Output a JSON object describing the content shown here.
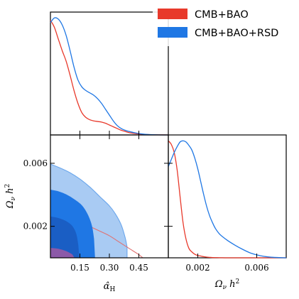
{
  "chart_data": [
    {
      "type": "line",
      "panel": "hat-alpha-H-1d-marginal",
      "xlim": [
        0,
        0.6
      ],
      "ylim": [
        0,
        1.05
      ],
      "series": [
        {
          "name": "CMB+BAO",
          "color": "#e8392b",
          "x": [
            0,
            0.02,
            0.04,
            0.06,
            0.08,
            0.1,
            0.12,
            0.14,
            0.16,
            0.18,
            0.2,
            0.22,
            0.24,
            0.26,
            0.28,
            0.3,
            0.32,
            0.34,
            0.36,
            0.38,
            0.4,
            0.43,
            0.46,
            0.5,
            0.55,
            0.6
          ],
          "y": [
            0.98,
            0.92,
            0.82,
            0.72,
            0.63,
            0.51,
            0.38,
            0.27,
            0.19,
            0.15,
            0.13,
            0.12,
            0.115,
            0.11,
            0.1,
            0.085,
            0.07,
            0.055,
            0.04,
            0.03,
            0.02,
            0.012,
            0.007,
            0.003,
            0.001,
            0.0
          ]
        },
        {
          "name": "CMB+BAO+RSD",
          "color": "#1f77e4",
          "x": [
            0,
            0.02,
            0.04,
            0.06,
            0.08,
            0.1,
            0.12,
            0.14,
            0.16,
            0.18,
            0.2,
            0.22,
            0.24,
            0.26,
            0.28,
            0.3,
            0.32,
            0.34,
            0.36,
            0.38,
            0.4,
            0.43,
            0.46,
            0.5,
            0.55,
            0.6
          ],
          "y": [
            0.96,
            1.0,
            0.99,
            0.94,
            0.85,
            0.72,
            0.58,
            0.47,
            0.41,
            0.38,
            0.36,
            0.34,
            0.31,
            0.27,
            0.22,
            0.17,
            0.12,
            0.08,
            0.055,
            0.04,
            0.03,
            0.018,
            0.01,
            0.004,
            0.001,
            0.0
          ]
        }
      ]
    },
    {
      "type": "line",
      "panel": "omega-nu-h2-1d-marginal",
      "xlim": [
        0,
        0.008
      ],
      "ylim": [
        0,
        1.05
      ],
      "series": [
        {
          "name": "CMB+BAO",
          "color": "#e8392b",
          "x": [
            0,
            0.0002,
            0.0004,
            0.0006,
            0.0008,
            0.001,
            0.0012,
            0.0014,
            0.0016,
            0.0018,
            0.002,
            0.0022,
            0.0024,
            0.0026,
            0.0028,
            0.003,
            0.0035,
            0.004,
            0.005,
            0.006,
            0.007,
            0.008
          ],
          "y": [
            1.0,
            0.97,
            0.9,
            0.75,
            0.52,
            0.3,
            0.16,
            0.08,
            0.05,
            0.03,
            0.02,
            0.015,
            0.01,
            0.006,
            0.004,
            0.002,
            0.001,
            0.0,
            0.0,
            0.0,
            0.0,
            0.0
          ]
        },
        {
          "name": "CMB+BAO+RSD",
          "color": "#1f77e4",
          "x": [
            0,
            0.0002,
            0.0004,
            0.0006,
            0.0008,
            0.001,
            0.0012,
            0.0014,
            0.0016,
            0.0018,
            0.002,
            0.0022,
            0.0024,
            0.0026,
            0.0028,
            0.003,
            0.0032,
            0.0035,
            0.004,
            0.0045,
            0.005,
            0.0055,
            0.006,
            0.0065,
            0.007,
            0.008
          ],
          "y": [
            0.78,
            0.84,
            0.9,
            0.95,
            0.99,
            1.0,
            0.99,
            0.96,
            0.92,
            0.85,
            0.76,
            0.65,
            0.54,
            0.44,
            0.36,
            0.3,
            0.25,
            0.2,
            0.15,
            0.11,
            0.075,
            0.045,
            0.025,
            0.012,
            0.005,
            0.0
          ]
        }
      ]
    },
    {
      "type": "area",
      "panel": "2d-contours",
      "xlabel": "α̂_H",
      "ylabel": "Ω_ν h²",
      "xlim": [
        0,
        0.6
      ],
      "ylim": [
        0,
        0.0078
      ],
      "xticks": [
        "0.15",
        "0.30",
        "0.45"
      ],
      "yticks": [
        "0.002",
        "0.006"
      ],
      "contours": [
        {
          "name": "CMB+BAO+RSD",
          "level": "95%",
          "fill": "#a9cbf3",
          "edge": "#6aa6ec",
          "points": [
            [
              0,
              0.00595
            ],
            [
              0.05,
              0.0057
            ],
            [
              0.1,
              0.0054
            ],
            [
              0.15,
              0.005
            ],
            [
              0.2,
              0.0045
            ],
            [
              0.25,
              0.0039
            ],
            [
              0.3,
              0.0033
            ],
            [
              0.33,
              0.0028
            ],
            [
              0.36,
              0.0021
            ],
            [
              0.38,
              0.0013
            ],
            [
              0.39,
              0.0007
            ],
            [
              0.39,
              0.0
            ],
            [
              0,
              0.0
            ]
          ]
        },
        {
          "name": "CMB+BAO",
          "level": "95%",
          "fill": "none",
          "edge": "#e07070",
          "points": [
            [
              0,
              0.0027
            ],
            [
              0.05,
              0.0026
            ],
            [
              0.1,
              0.0025
            ],
            [
              0.15,
              0.0023
            ],
            [
              0.2,
              0.002
            ],
            [
              0.25,
              0.0017
            ],
            [
              0.3,
              0.0014
            ],
            [
              0.35,
              0.001
            ],
            [
              0.4,
              0.0006
            ],
            [
              0.45,
              0.0002
            ],
            [
              0.47,
              0.0
            ]
          ]
        },
        {
          "name": "CMB+BAO+RSD",
          "level": "68%",
          "fill": "#1f77e4",
          "edge": "#1f77e4",
          "points": [
            [
              0,
              0.0043
            ],
            [
              0.04,
              0.0042
            ],
            [
              0.08,
              0.004
            ],
            [
              0.12,
              0.0037
            ],
            [
              0.16,
              0.0033
            ],
            [
              0.19,
              0.0027
            ],
            [
              0.21,
              0.002
            ],
            [
              0.22,
              0.0012
            ],
            [
              0.225,
              0.0
            ],
            [
              0,
              0.0
            ]
          ]
        },
        {
          "name": "CMB+BAO",
          "level": "68%",
          "fill": "#1a5ec4",
          "edge": "#1a5ec4",
          "points": [
            [
              0,
              0.0026
            ],
            [
              0.04,
              0.0025
            ],
            [
              0.08,
              0.0023
            ],
            [
              0.11,
              0.002
            ],
            [
              0.13,
              0.0015
            ],
            [
              0.14,
              0.0008
            ],
            [
              0.145,
              0.0
            ],
            [
              0,
              0.0
            ]
          ]
        },
        {
          "name": "CMB+BAO",
          "level": "dark-core",
          "fill": "#8c5aa8",
          "edge": "#8c5aa8",
          "points": [
            [
              0,
              0.0006
            ],
            [
              0.04,
              0.00055
            ],
            [
              0.08,
              0.0004
            ],
            [
              0.11,
              0.0002
            ],
            [
              0.12,
              0.0
            ],
            [
              0,
              0.0
            ]
          ]
        }
      ]
    },
    {
      "type": "line",
      "panel": "omega-nu-h2-axis",
      "xlabel": "Ω_ν h²",
      "xlim": [
        0,
        0.008
      ],
      "xticks": [
        "0.002",
        "0.006"
      ]
    }
  ],
  "legend": {
    "placement": "top-right",
    "entries": [
      {
        "label": "CMB+BAO",
        "color": "#e8392b"
      },
      {
        "label": "CMB+BAO+RSD",
        "color": "#1f77e4"
      }
    ]
  }
}
